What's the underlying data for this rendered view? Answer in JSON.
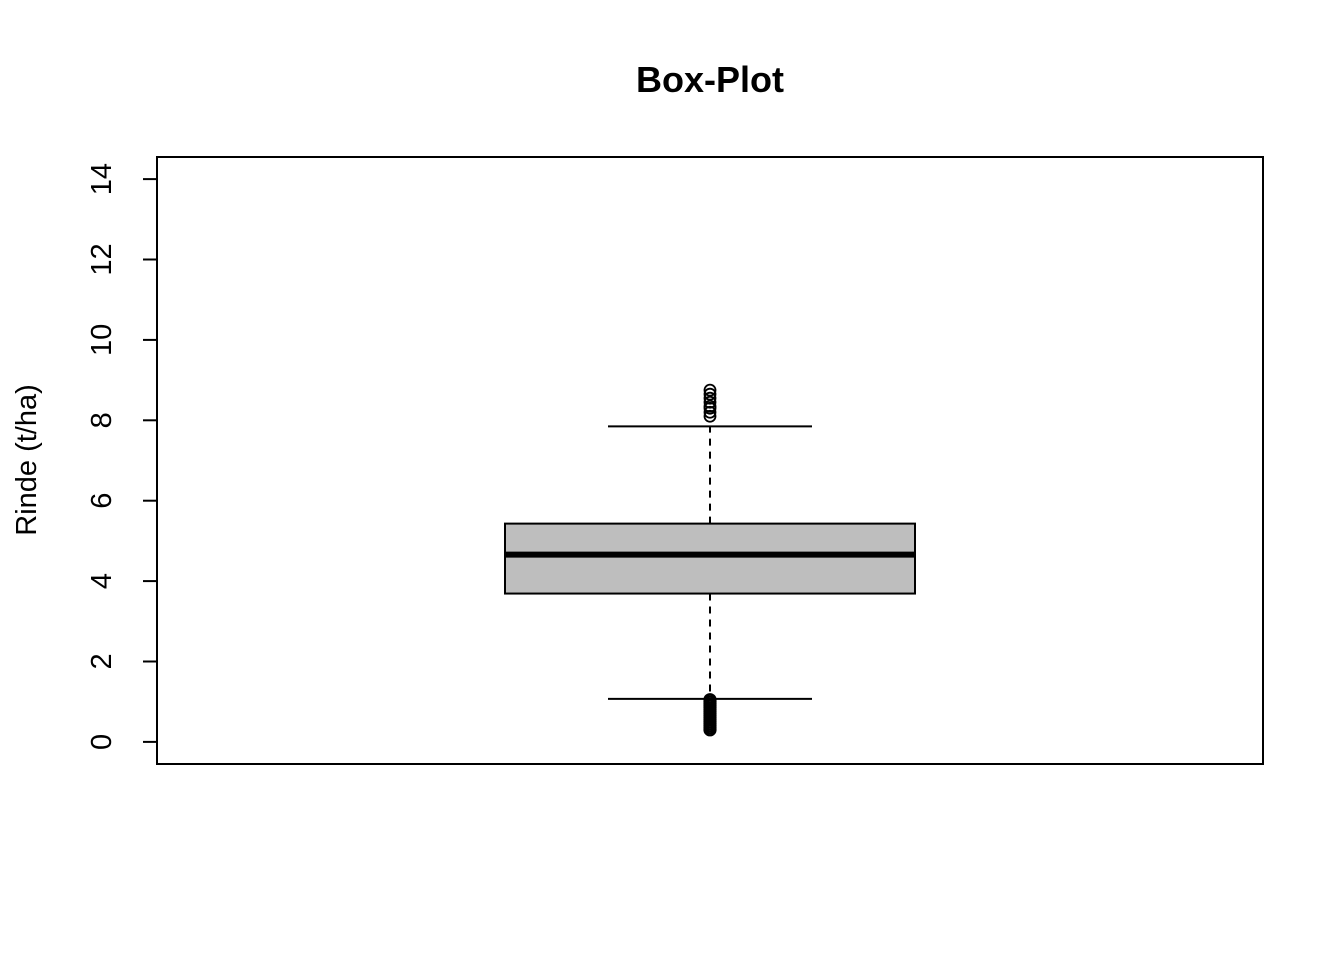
{
  "chart_data": {
    "type": "boxplot",
    "title": "Box-Plot",
    "xlabel": "",
    "ylabel": "Rinde (t/ha)",
    "ylim": [
      -0.55,
      14.55
    ],
    "yticks": [
      0,
      2,
      4,
      6,
      8,
      10,
      12,
      14
    ],
    "grid": false,
    "box": {
      "lower_whisker": 1.07,
      "q1": 3.69,
      "median": 4.66,
      "q3": 5.43,
      "upper_whisker": 7.85,
      "fill": "#bebebe"
    },
    "outliers_high": [
      8.1,
      8.2,
      8.3,
      8.35,
      8.45,
      8.55,
      8.65,
      8.75
    ],
    "outliers_low": [
      0.3,
      0.35,
      0.4,
      0.45,
      0.5,
      0.55,
      0.6,
      0.65,
      0.7,
      0.75,
      0.8,
      0.85,
      0.9,
      0.95,
      1.0,
      1.05
    ]
  }
}
